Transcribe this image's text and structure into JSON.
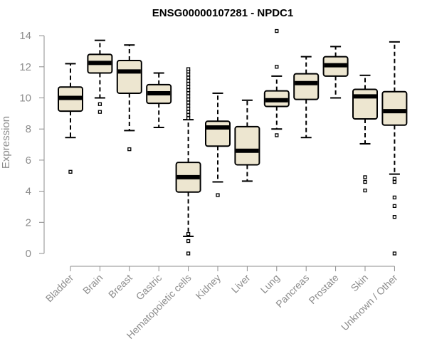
{
  "chart_data": {
    "type": "boxplot",
    "title": "ENSG00000107281 - NPDC1",
    "xlabel": "",
    "ylabel": "Expression",
    "ylim": [
      0,
      14
    ],
    "yticks": [
      0,
      2,
      4,
      6,
      8,
      10,
      12,
      14
    ],
    "colors": {
      "box_fill": "#ede6d0",
      "stroke": "#000000",
      "axis": "#8c8c8c"
    },
    "categories": [
      "Bladder",
      "Brain",
      "Breast",
      "Gastric",
      "Hematopoietic cells",
      "Kidney",
      "Liver",
      "Lung",
      "Pancreas",
      "Prostate",
      "Skin",
      "Unknown / Other"
    ],
    "boxes": [
      {
        "name": "Bladder",
        "whisker_low": 7.45,
        "q1": 9.15,
        "median": 10.0,
        "q3": 10.7,
        "whisker_high": 12.2,
        "outliers": [
          5.25
        ]
      },
      {
        "name": "Brain",
        "whisker_low": 10.0,
        "q1": 11.6,
        "median": 12.25,
        "q3": 12.8,
        "whisker_high": 13.7,
        "outliers": [
          9.6,
          9.1
        ]
      },
      {
        "name": "Breast",
        "whisker_low": 7.9,
        "q1": 10.3,
        "median": 11.7,
        "q3": 12.4,
        "whisker_high": 13.4,
        "outliers": [
          6.7
        ]
      },
      {
        "name": "Gastric",
        "whisker_low": 8.1,
        "q1": 9.65,
        "median": 10.3,
        "q3": 10.85,
        "whisker_high": 11.6,
        "outliers": []
      },
      {
        "name": "Hematopoietic cells",
        "whisker_low": 1.1,
        "q1": 3.95,
        "median": 4.9,
        "q3": 5.85,
        "whisker_high": 8.6,
        "outliers": [
          0.0,
          0.8,
          1.25,
          8.7,
          8.9,
          9.1,
          9.3,
          9.5,
          9.7,
          9.9,
          10.1,
          10.3,
          10.5,
          10.7,
          10.9,
          11.1,
          11.3,
          11.5,
          11.7,
          11.85
        ]
      },
      {
        "name": "Kidney",
        "whisker_low": 4.6,
        "q1": 6.9,
        "median": 8.1,
        "q3": 8.5,
        "whisker_high": 10.3,
        "outliers": [
          3.75
        ]
      },
      {
        "name": "Liver",
        "whisker_low": 4.65,
        "q1": 5.7,
        "median": 6.6,
        "q3": 8.15,
        "whisker_high": 9.85,
        "outliers": []
      },
      {
        "name": "Lung",
        "whisker_low": 8.0,
        "q1": 9.45,
        "median": 9.85,
        "q3": 10.45,
        "whisker_high": 11.4,
        "outliers": [
          14.3,
          12.0,
          7.6
        ]
      },
      {
        "name": "Pancreas",
        "whisker_low": 7.45,
        "q1": 9.9,
        "median": 10.95,
        "q3": 11.55,
        "whisker_high": 12.65,
        "outliers": []
      },
      {
        "name": "Prostate",
        "whisker_low": 10.0,
        "q1": 11.4,
        "median": 12.1,
        "q3": 12.65,
        "whisker_high": 13.3,
        "outliers": []
      },
      {
        "name": "Skin",
        "whisker_low": 7.05,
        "q1": 8.65,
        "median": 10.1,
        "q3": 10.55,
        "whisker_high": 11.45,
        "outliers": [
          4.9,
          4.6,
          4.05
        ]
      },
      {
        "name": "Unknown / Other",
        "whisker_low": 5.1,
        "q1": 8.25,
        "median": 9.15,
        "q3": 10.4,
        "whisker_high": 13.6,
        "outliers": [
          4.8,
          4.6,
          3.6,
          3.05,
          2.35,
          0.0
        ]
      }
    ]
  }
}
